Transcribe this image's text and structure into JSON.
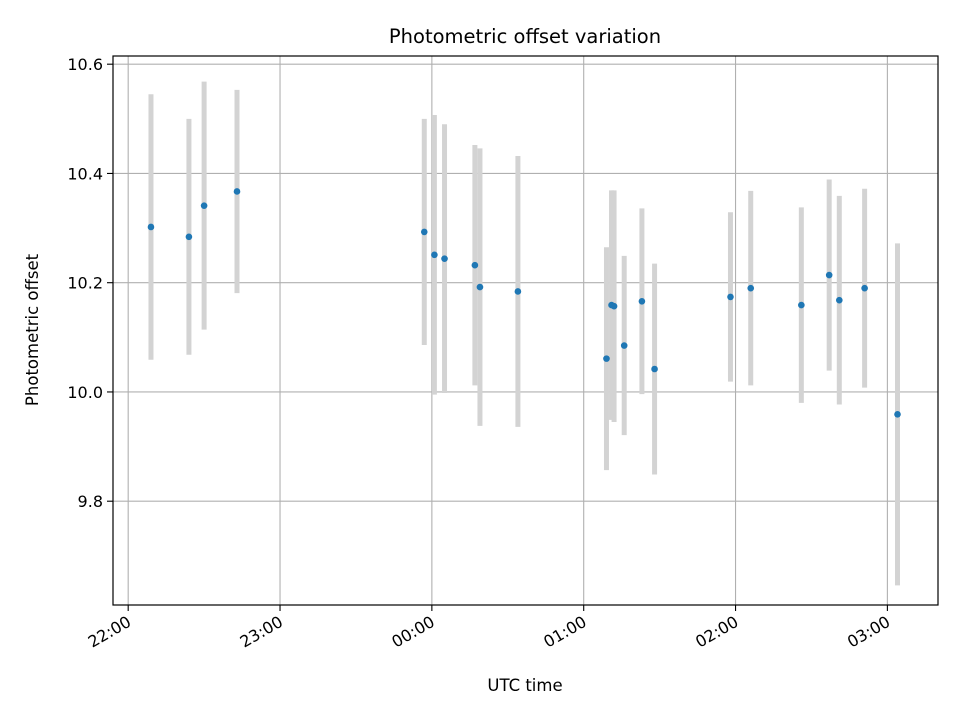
{
  "chart_data": {
    "type": "scatter",
    "title": "Photometric offset variation",
    "xlabel": "UTC time",
    "ylabel": "Photometric offset",
    "x_unit": "UTC hh:mm",
    "xlim": [
      "21:54",
      "03:20"
    ],
    "ylim": [
      9.61,
      10.615
    ],
    "grid": true,
    "x_ticks": [
      "22:00",
      "23:00",
      "00:00",
      "01:00",
      "02:00",
      "03:00"
    ],
    "y_ticks": [
      9.8,
      10.0,
      10.2,
      10.4,
      10.6
    ],
    "y_tick_labels": [
      "9.8",
      "10.0",
      "10.2",
      "10.4",
      "10.6"
    ],
    "colors": {
      "point": "#1f77b4",
      "errorbar": "#d3d3d3",
      "grid": "#b0b0b0"
    },
    "points": [
      {
        "x": "22:09",
        "y": 10.302,
        "err": 0.243
      },
      {
        "x": "22:24",
        "y": 10.284,
        "err": 0.216
      },
      {
        "x": "22:30",
        "y": 10.341,
        "err": 0.227
      },
      {
        "x": "22:43",
        "y": 10.367,
        "err": 0.186
      },
      {
        "x": "23:57",
        "y": 10.293,
        "err": 0.207
      },
      {
        "x": "00:01",
        "y": 10.251,
        "err": 0.256
      },
      {
        "x": "00:05",
        "y": 10.244,
        "err": 0.246
      },
      {
        "x": "00:17",
        "y": 10.232,
        "err": 0.22
      },
      {
        "x": "00:19",
        "y": 10.192,
        "err": 0.254
      },
      {
        "x": "00:34",
        "y": 10.184,
        "err": 0.248
      },
      {
        "x": "01:09",
        "y": 10.061,
        "err": 0.204
      },
      {
        "x": "01:11",
        "y": 10.159,
        "err": 0.21
      },
      {
        "x": "01:12",
        "y": 10.157,
        "err": 0.212
      },
      {
        "x": "01:16",
        "y": 10.085,
        "err": 0.164
      },
      {
        "x": "01:23",
        "y": 10.166,
        "err": 0.17
      },
      {
        "x": "01:28",
        "y": 10.042,
        "err": 0.193
      },
      {
        "x": "01:58",
        "y": 10.174,
        "err": 0.155
      },
      {
        "x": "02:06",
        "y": 10.19,
        "err": 0.178
      },
      {
        "x": "02:26",
        "y": 10.159,
        "err": 0.179
      },
      {
        "x": "02:37",
        "y": 10.214,
        "err": 0.175
      },
      {
        "x": "02:41",
        "y": 10.168,
        "err": 0.191
      },
      {
        "x": "02:51",
        "y": 10.19,
        "err": 0.182
      },
      {
        "x": "03:04",
        "y": 9.959,
        "err": 0.313
      }
    ]
  }
}
